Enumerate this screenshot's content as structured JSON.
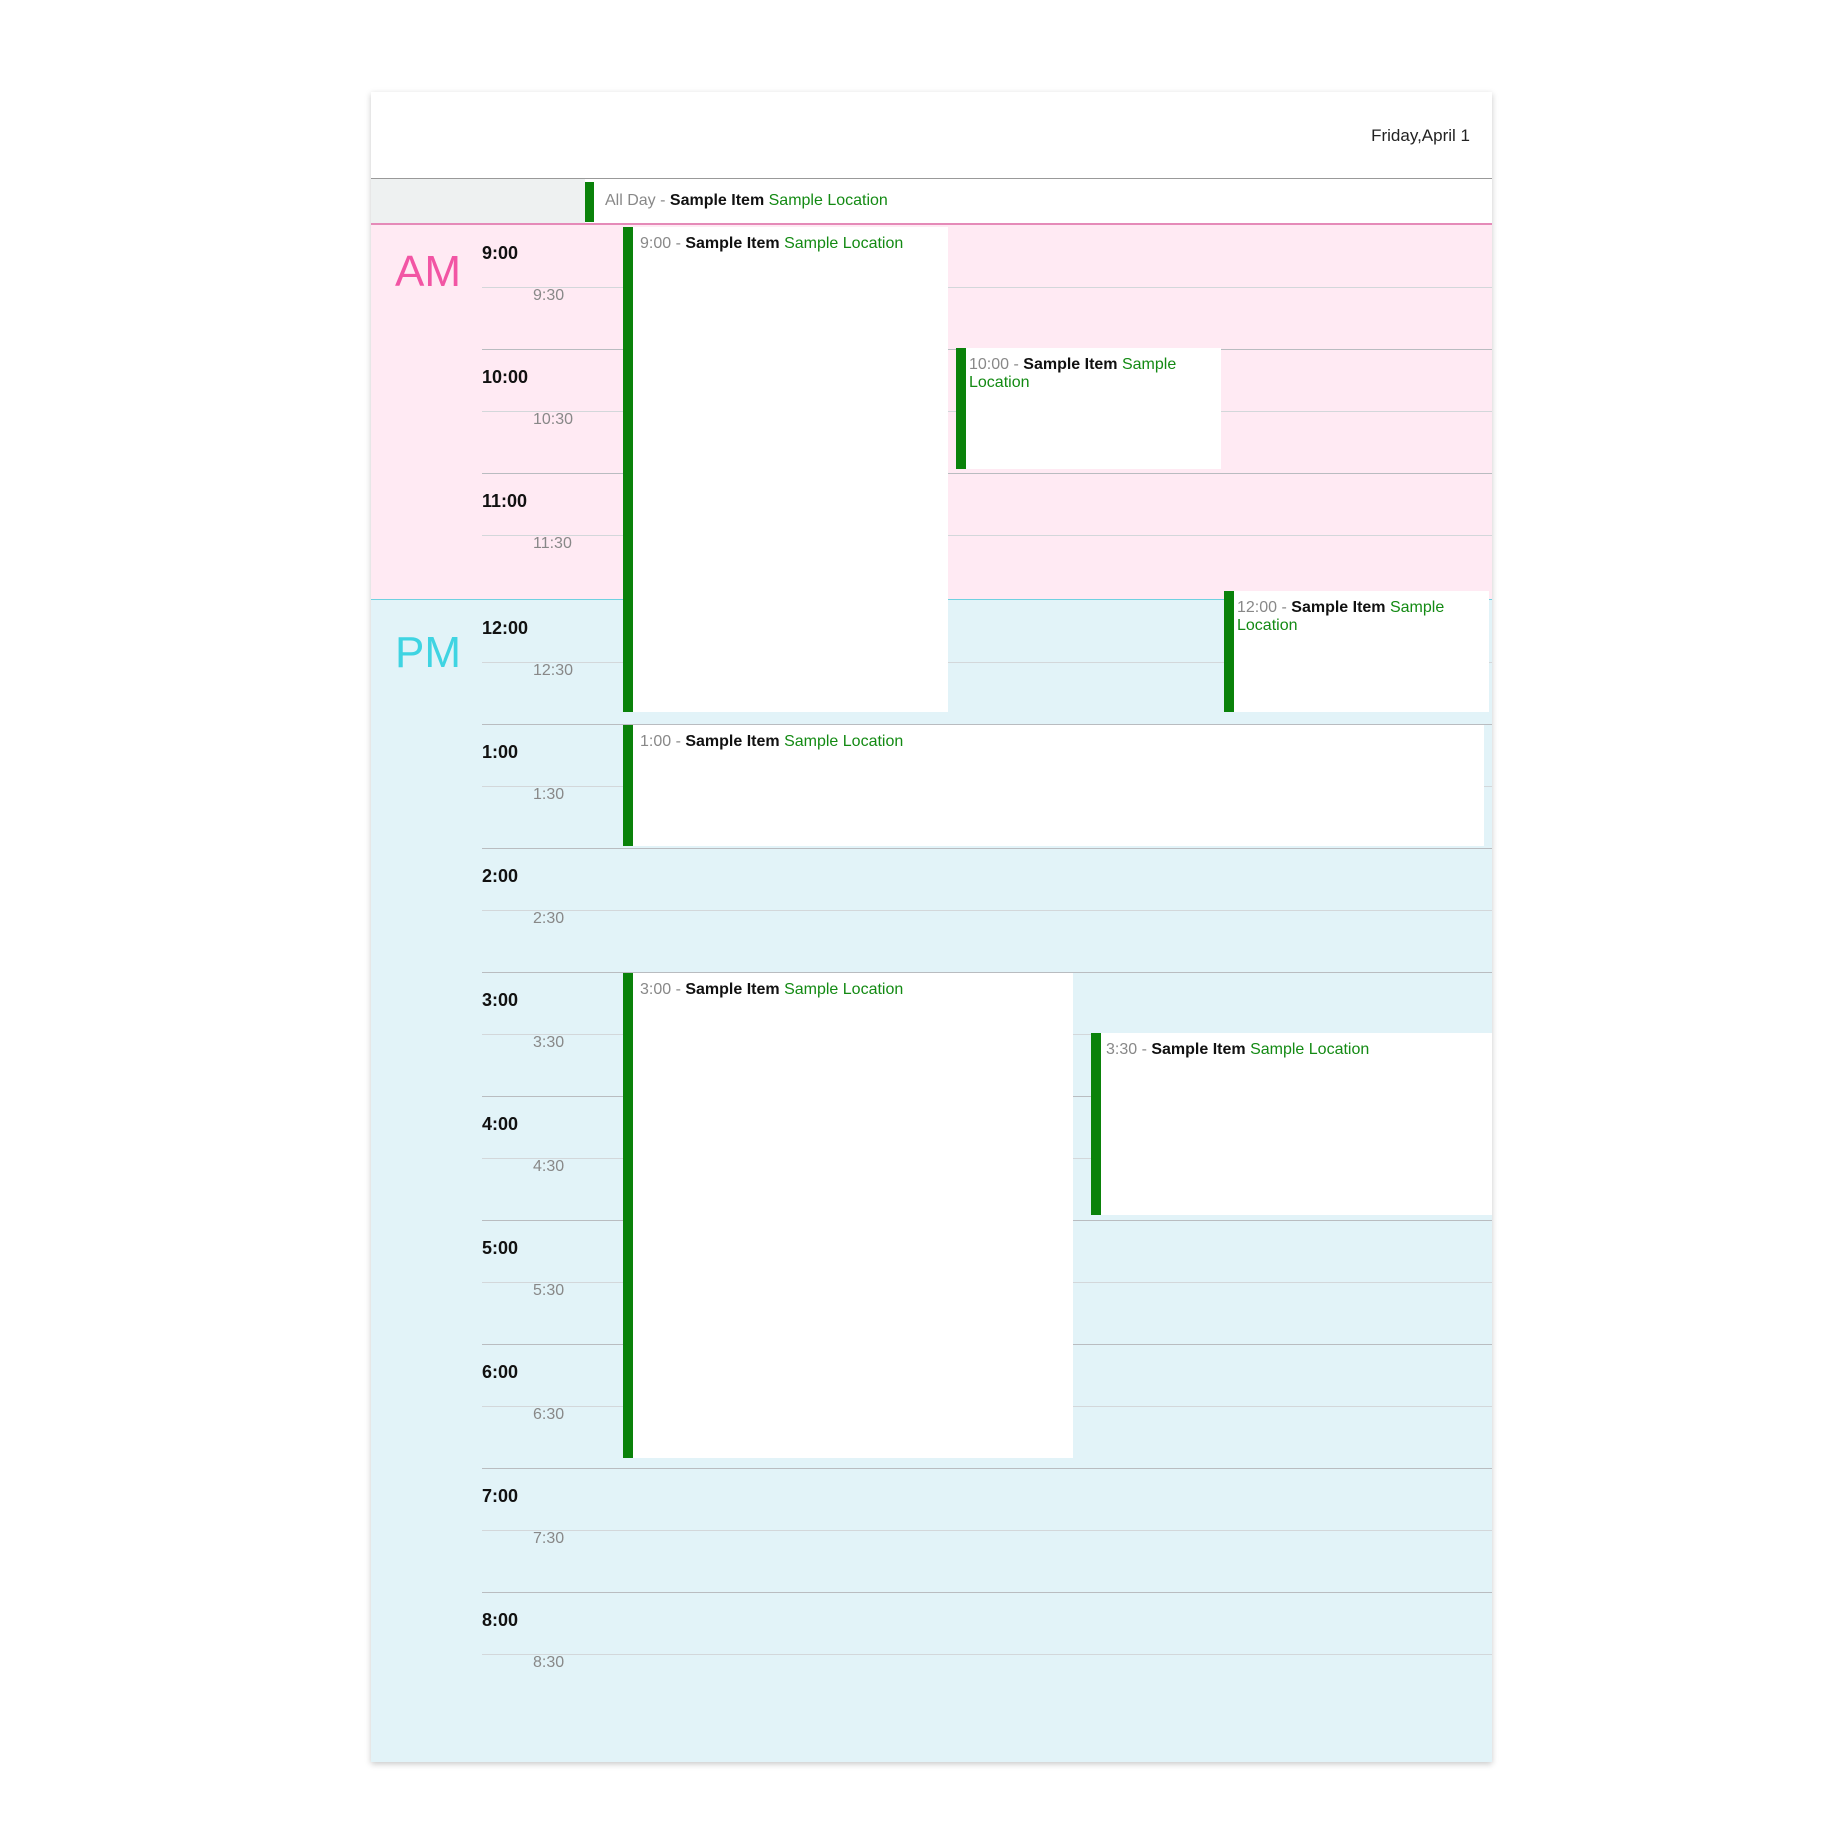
{
  "header": {
    "date": "Friday,April 1"
  },
  "all_day": {
    "time": "All Day",
    "sep": " - ",
    "title": "Sample Item",
    "location": "Sample Location"
  },
  "zones": {
    "am": "AM",
    "pm": "PM"
  },
  "hours": [
    {
      "hour": "9:00",
      "half": "9:30"
    },
    {
      "hour": "10:00",
      "half": "10:30"
    },
    {
      "hour": "11:00",
      "half": "11:30"
    },
    {
      "hour": "12:00",
      "half": "12:30"
    },
    {
      "hour": "1:00",
      "half": "1:30"
    },
    {
      "hour": "2:00",
      "half": "2:30"
    },
    {
      "hour": "3:00",
      "half": "3:30"
    },
    {
      "hour": "4:00",
      "half": "4:30"
    },
    {
      "hour": "5:00",
      "half": "5:30"
    },
    {
      "hour": "6:00",
      "half": "6:30"
    },
    {
      "hour": "7:00",
      "half": "7:30"
    },
    {
      "hour": "8:00",
      "half": "8:30"
    }
  ],
  "events": [
    {
      "time": "9:00",
      "sep": " - ",
      "title": "Sample Item",
      "location": "Sample Location"
    },
    {
      "time": "10:00",
      "sep": " - ",
      "title": "Sample Item",
      "location": "Sample Location"
    },
    {
      "time": "12:00",
      "sep": " - ",
      "title": "Sample Item",
      "location": "Sample Location"
    },
    {
      "time": "1:00",
      "sep": " - ",
      "title": "Sample Item",
      "location": "Sample Location"
    },
    {
      "time": "3:00",
      "sep": " - ",
      "title": "Sample Item",
      "location": "Sample Location"
    },
    {
      "time": "3:30",
      "sep": " - ",
      "title": "Sample Item",
      "location": "Sample Location"
    }
  ],
  "colors": {
    "event_bar": "#0a820a",
    "location_text": "#138a13",
    "am_background": "#ffeaf3",
    "pm_background": "#e2f3f8",
    "am_label": "#f255a4",
    "pm_label": "#3fd4e2"
  }
}
